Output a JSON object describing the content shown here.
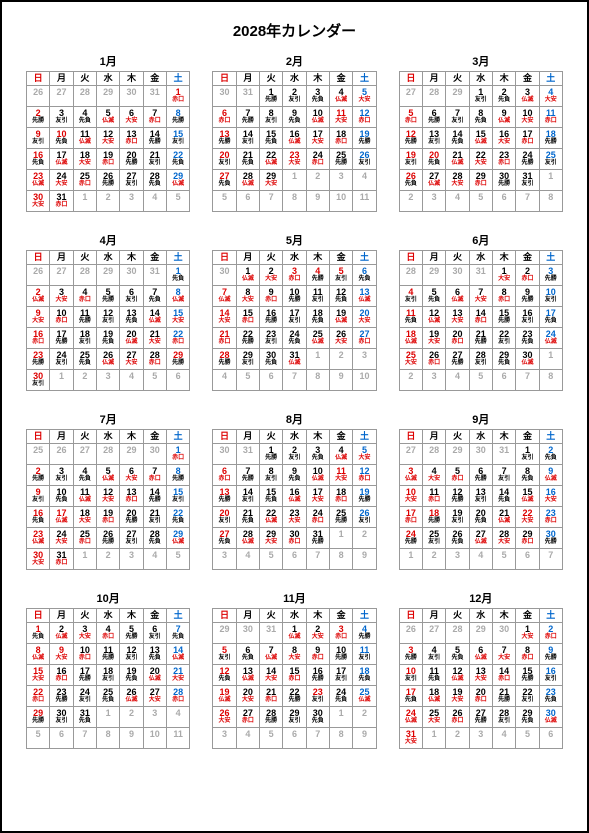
{
  "title": "2028年カレンダー",
  "weekday_labels": [
    "日",
    "月",
    "火",
    "水",
    "木",
    "金",
    "土"
  ],
  "rokuyo": [
    "先勝",
    "友引",
    "先負",
    "仏滅",
    "大安",
    "赤口"
  ],
  "colors": {
    "sunday": "#d00",
    "saturday": "#06c",
    "holiday": "#d00",
    "other_month": "#aaa",
    "border": "#999",
    "rk_red": "#d00",
    "background": "#ffffff"
  },
  "font_sizes": {
    "title": 15,
    "month_name": 11,
    "weekday": 9,
    "day": 9,
    "rokuyo": 6
  },
  "months": [
    {
      "n": 1,
      "label": "1月",
      "first_dow": 6,
      "days": 31,
      "prev_days": 31,
      "rk_start": 5,
      "holidays": [
        1,
        2,
        10
      ]
    },
    {
      "n": 2,
      "label": "2月",
      "first_dow": 2,
      "days": 29,
      "prev_days": 31,
      "rk_start": 0,
      "holidays": [
        11,
        23
      ]
    },
    {
      "n": 3,
      "label": "3月",
      "first_dow": 3,
      "days": 31,
      "prev_days": 29,
      "rk_start": 1,
      "holidays": [
        20
      ]
    },
    {
      "n": 4,
      "label": "4月",
      "first_dow": 6,
      "days": 30,
      "prev_days": 31,
      "rk_start": 2,
      "holidays": [
        29
      ]
    },
    {
      "n": 5,
      "label": "5月",
      "first_dow": 1,
      "days": 31,
      "prev_days": 30,
      "rk_start": 3,
      "holidays": [
        3,
        4,
        5
      ]
    },
    {
      "n": 6,
      "label": "6月",
      "first_dow": 4,
      "days": 30,
      "prev_days": 31,
      "rk_start": 4,
      "holidays": []
    },
    {
      "n": 7,
      "label": "7月",
      "first_dow": 6,
      "days": 31,
      "prev_days": 30,
      "rk_start": 5,
      "holidays": [
        17
      ]
    },
    {
      "n": 8,
      "label": "8月",
      "first_dow": 2,
      "days": 31,
      "prev_days": 31,
      "rk_start": 0,
      "holidays": [
        11
      ]
    },
    {
      "n": 9,
      "label": "9月",
      "first_dow": 5,
      "days": 30,
      "prev_days": 31,
      "rk_start": 1,
      "holidays": [
        18,
        22
      ]
    },
    {
      "n": 10,
      "label": "10月",
      "first_dow": 0,
      "days": 31,
      "prev_days": 30,
      "rk_start": 2,
      "holidays": [
        9
      ]
    },
    {
      "n": 11,
      "label": "11月",
      "first_dow": 3,
      "days": 30,
      "prev_days": 31,
      "rk_start": 3,
      "holidays": [
        3,
        23
      ]
    },
    {
      "n": 12,
      "label": "12月",
      "first_dow": 5,
      "days": 31,
      "prev_days": 30,
      "rk_start": 4,
      "holidays": []
    }
  ]
}
